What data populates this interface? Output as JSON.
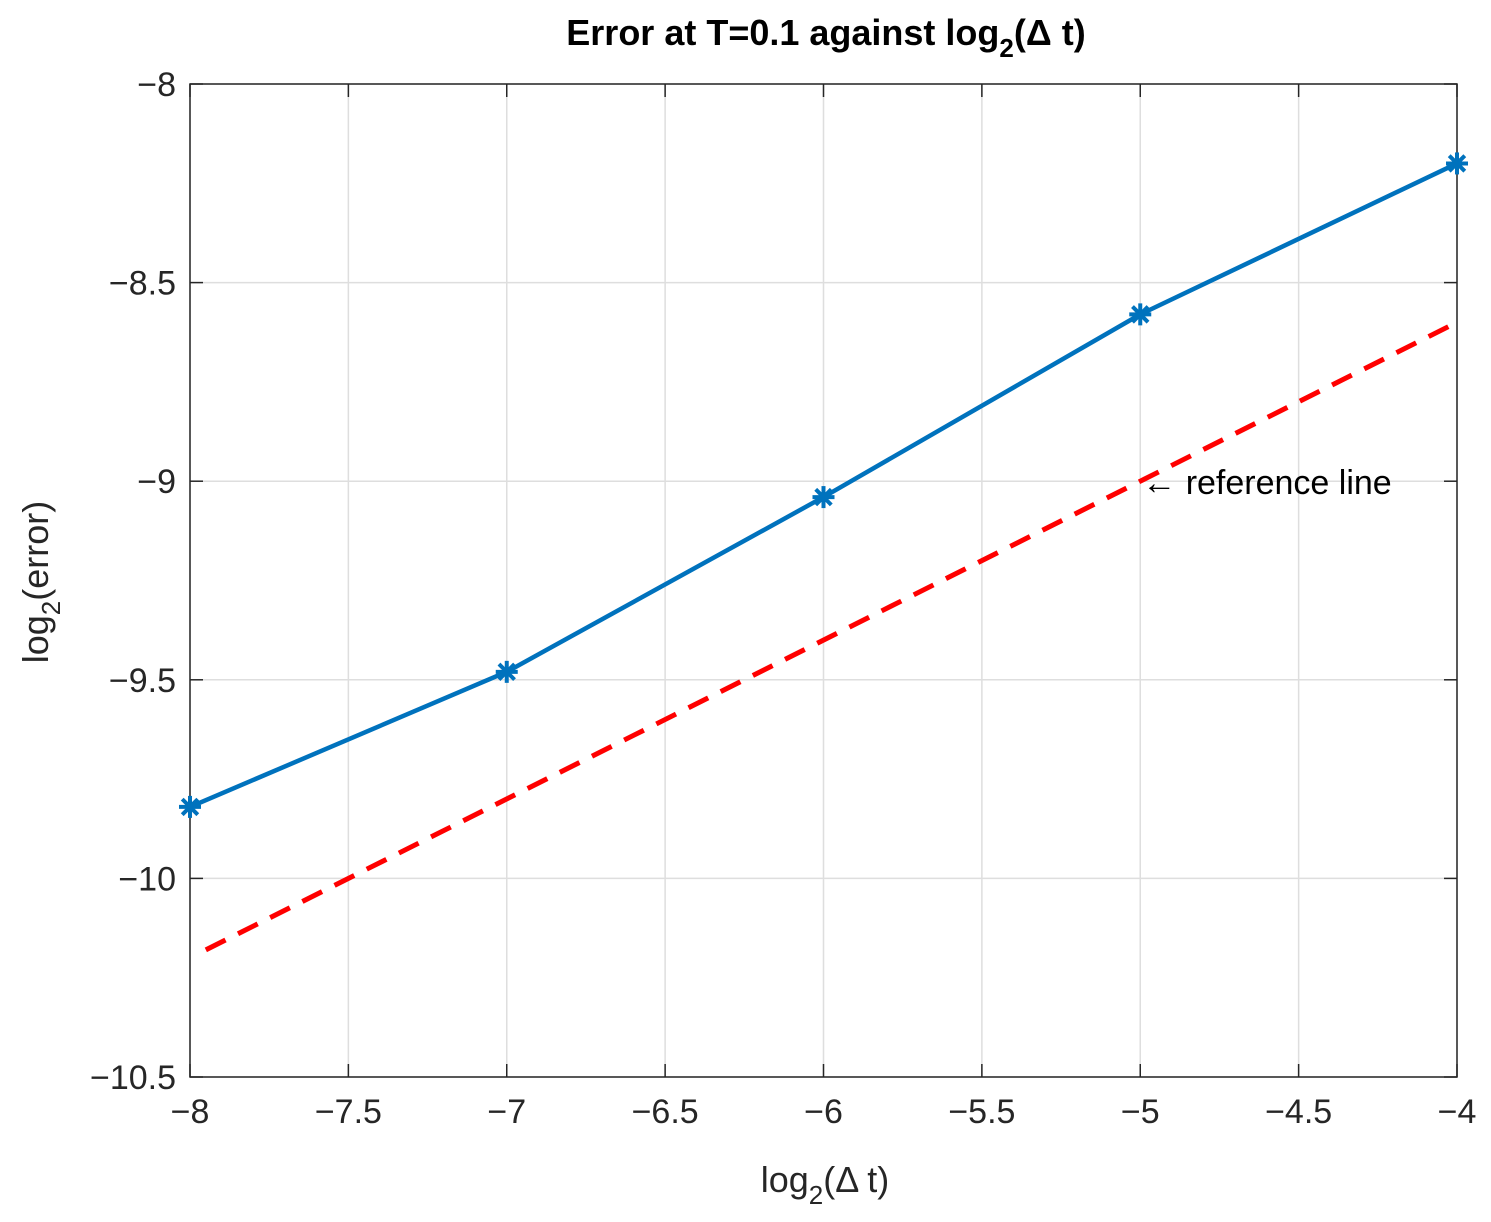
{
  "chart_data": {
    "type": "line",
    "title_main": "Error at T=0.1 against log",
    "title_sub": "2",
    "title_tail": "(Δ t)",
    "xlabel_main": "log",
    "xlabel_sub": "2",
    "xlabel_tail": "(Δ t)",
    "ylabel_main": "log",
    "ylabel_sub": "2",
    "ylabel_tail": "(error)",
    "xlim": [
      -8,
      -4
    ],
    "ylim": [
      -10.5,
      -8
    ],
    "xticks": [
      -8,
      -7.5,
      -7,
      -6.5,
      -6,
      -5.5,
      -5,
      -4.5,
      -4
    ],
    "xtick_labels": [
      "−8",
      "−7.5",
      "−7",
      "−6.5",
      "−6",
      "−5.5",
      "−5",
      "−4.5",
      "−4"
    ],
    "yticks": [
      -10.5,
      -10,
      -9.5,
      -9,
      -8.5,
      -8
    ],
    "ytick_labels": [
      "−10.5",
      "−10",
      "−9.5",
      "−9",
      "−8.5",
      "−8"
    ],
    "grid": true,
    "series": [
      {
        "style": "solid",
        "marker": "asterisk",
        "color": "#0072BD",
        "x": [
          -8,
          -7,
          -6,
          -5,
          -4
        ],
        "y": [
          -9.82,
          -9.48,
          -9.04,
          -8.58,
          -8.2
        ]
      },
      {
        "style": "dashed",
        "marker": "none",
        "color": "#FF0000",
        "x": [
          -7.95,
          -4
        ],
        "y": [
          -10.18,
          -8.6
        ]
      }
    ],
    "annotations": [
      {
        "text": "← reference line",
        "x": -5,
        "y": -9
      }
    ]
  }
}
